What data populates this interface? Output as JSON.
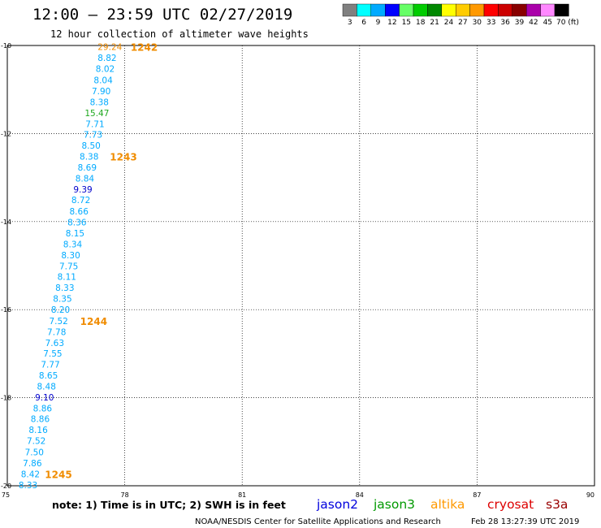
{
  "header": {
    "title": "12:00 – 23:59 UTC 02/27/2019",
    "subtitle": "12 hour collection of altimeter wave heights"
  },
  "colorbar": {
    "colors": [
      "#808080",
      "#00ffff",
      "#00aaff",
      "#0000ff",
      "#66ff66",
      "#00cc00",
      "#008800",
      "#ffff00",
      "#ffcc00",
      "#ff9900",
      "#ff0000",
      "#cc0000",
      "#880000",
      "#aa00aa",
      "#ff88ff",
      "#000000"
    ],
    "labels": [
      "3",
      "6",
      "9",
      "12",
      "15",
      "18",
      "21",
      "24",
      "27",
      "30",
      "33",
      "36",
      "39",
      "42",
      "45",
      "70 (ft)"
    ]
  },
  "chart_data": {
    "type": "scatter",
    "title": "12 hour collection of altimeter wave heights",
    "xlim": [
      75,
      90
    ],
    "ylim": [
      -20,
      -10
    ],
    "x_ticks": [
      "75",
      "78",
      "81",
      "84",
      "87",
      "90"
    ],
    "y_ticks": [
      "-10",
      "-12",
      "-14",
      "-16",
      "-18",
      "-20"
    ],
    "grid": true,
    "units": "ft",
    "points": [
      {
        "lon": 77.62,
        "lat": -10.03,
        "swh": "29.24",
        "color": "#f08c00"
      },
      {
        "lon": 77.55,
        "lat": -10.28,
        "swh": "8.82",
        "color": "#00aaff"
      },
      {
        "lon": 77.5,
        "lat": -10.53,
        "swh": "8.02",
        "color": "#00aaff"
      },
      {
        "lon": 77.45,
        "lat": -10.78,
        "swh": "8.04",
        "color": "#00aaff"
      },
      {
        "lon": 77.4,
        "lat": -11.03,
        "swh": "7.90",
        "color": "#00aaff"
      },
      {
        "lon": 77.35,
        "lat": -11.28,
        "swh": "8.38",
        "color": "#00aaff"
      },
      {
        "lon": 77.29,
        "lat": -11.53,
        "swh": "15.47",
        "color": "#1fa81f"
      },
      {
        "lon": 77.24,
        "lat": -11.78,
        "swh": "7.71",
        "color": "#00aaff"
      },
      {
        "lon": 77.19,
        "lat": -12.02,
        "swh": "7.73",
        "color": "#00aaff"
      },
      {
        "lon": 77.14,
        "lat": -12.27,
        "swh": "8.50",
        "color": "#00aaff"
      },
      {
        "lon": 77.09,
        "lat": -12.52,
        "swh": "8.38",
        "color": "#00aaff"
      },
      {
        "lon": 77.04,
        "lat": -12.77,
        "swh": "8.69",
        "color": "#00aaff"
      },
      {
        "lon": 76.98,
        "lat": -13.02,
        "swh": "8.84",
        "color": "#00aaff"
      },
      {
        "lon": 76.93,
        "lat": -13.27,
        "swh": "9.39",
        "color": "#0000cc"
      },
      {
        "lon": 76.88,
        "lat": -13.51,
        "swh": "8.72",
        "color": "#00aaff"
      },
      {
        "lon": 76.83,
        "lat": -13.76,
        "swh": "8.66",
        "color": "#00aaff"
      },
      {
        "lon": 76.78,
        "lat": -14.01,
        "swh": "8.36",
        "color": "#00aaff"
      },
      {
        "lon": 76.73,
        "lat": -14.26,
        "swh": "8.15",
        "color": "#00aaff"
      },
      {
        "lon": 76.67,
        "lat": -14.51,
        "swh": "8.34",
        "color": "#00aaff"
      },
      {
        "lon": 76.62,
        "lat": -14.76,
        "swh": "8.30",
        "color": "#00aaff"
      },
      {
        "lon": 76.57,
        "lat": -15.01,
        "swh": "7.75",
        "color": "#00aaff"
      },
      {
        "lon": 76.52,
        "lat": -15.25,
        "swh": "8.11",
        "color": "#00aaff"
      },
      {
        "lon": 76.47,
        "lat": -15.5,
        "swh": "8.33",
        "color": "#00aaff"
      },
      {
        "lon": 76.41,
        "lat": -15.75,
        "swh": "8.35",
        "color": "#00aaff"
      },
      {
        "lon": 76.36,
        "lat": -16.0,
        "swh": "8.20",
        "color": "#00aaff"
      },
      {
        "lon": 76.31,
        "lat": -16.25,
        "swh": "7.52",
        "color": "#00aaff"
      },
      {
        "lon": 76.26,
        "lat": -16.5,
        "swh": "7.78",
        "color": "#00aaff"
      },
      {
        "lon": 76.21,
        "lat": -16.75,
        "swh": "7.63",
        "color": "#00aaff"
      },
      {
        "lon": 76.16,
        "lat": -16.99,
        "swh": "7.55",
        "color": "#00aaff"
      },
      {
        "lon": 76.1,
        "lat": -17.24,
        "swh": "7.77",
        "color": "#00aaff"
      },
      {
        "lon": 76.05,
        "lat": -17.49,
        "swh": "8.65",
        "color": "#00aaff"
      },
      {
        "lon": 76.0,
        "lat": -17.74,
        "swh": "8.48",
        "color": "#00aaff"
      },
      {
        "lon": 75.95,
        "lat": -17.99,
        "swh": "9.10",
        "color": "#0000cc"
      },
      {
        "lon": 75.9,
        "lat": -18.24,
        "swh": "8.86",
        "color": "#00aaff"
      },
      {
        "lon": 75.84,
        "lat": -18.48,
        "swh": "8.86",
        "color": "#00aaff"
      },
      {
        "lon": 75.79,
        "lat": -18.73,
        "swh": "8.16",
        "color": "#00aaff"
      },
      {
        "lon": 75.74,
        "lat": -18.98,
        "swh": "7.52",
        "color": "#00aaff"
      },
      {
        "lon": 75.69,
        "lat": -19.23,
        "swh": "7.50",
        "color": "#00aaff"
      },
      {
        "lon": 75.64,
        "lat": -19.48,
        "swh": "7.86",
        "color": "#00aaff"
      },
      {
        "lon": 75.59,
        "lat": -19.73,
        "swh": "8.42",
        "color": "#00aaff"
      },
      {
        "lon": 75.53,
        "lat": -19.98,
        "swh": "8.33",
        "color": "#00aaff"
      }
    ],
    "pass_labels": [
      {
        "text": "1242",
        "lon": 78.15,
        "lat": -10.03
      },
      {
        "text": "1243",
        "lon": 77.62,
        "lat": -12.52
      },
      {
        "text": "1244",
        "lon": 76.86,
        "lat": -16.25
      },
      {
        "text": "1245",
        "lon": 75.96,
        "lat": -19.73
      }
    ]
  },
  "footer": {
    "note": "note: 1) Time is in UTC; 2) SWH is in feet",
    "satellites": [
      {
        "name": "jason2",
        "color": "#0000dd"
      },
      {
        "name": "jason3",
        "color": "#009900"
      },
      {
        "name": "altika",
        "color": "#ff9900"
      },
      {
        "name": "cryosat",
        "color": "#dd0000"
      },
      {
        "name": "s3a",
        "color": "#990000"
      }
    ],
    "credit": "NOAA/NESDIS Center for Satellite Applications and Research",
    "timestamp": "Feb 28 13:27:39 UTC 2019"
  }
}
